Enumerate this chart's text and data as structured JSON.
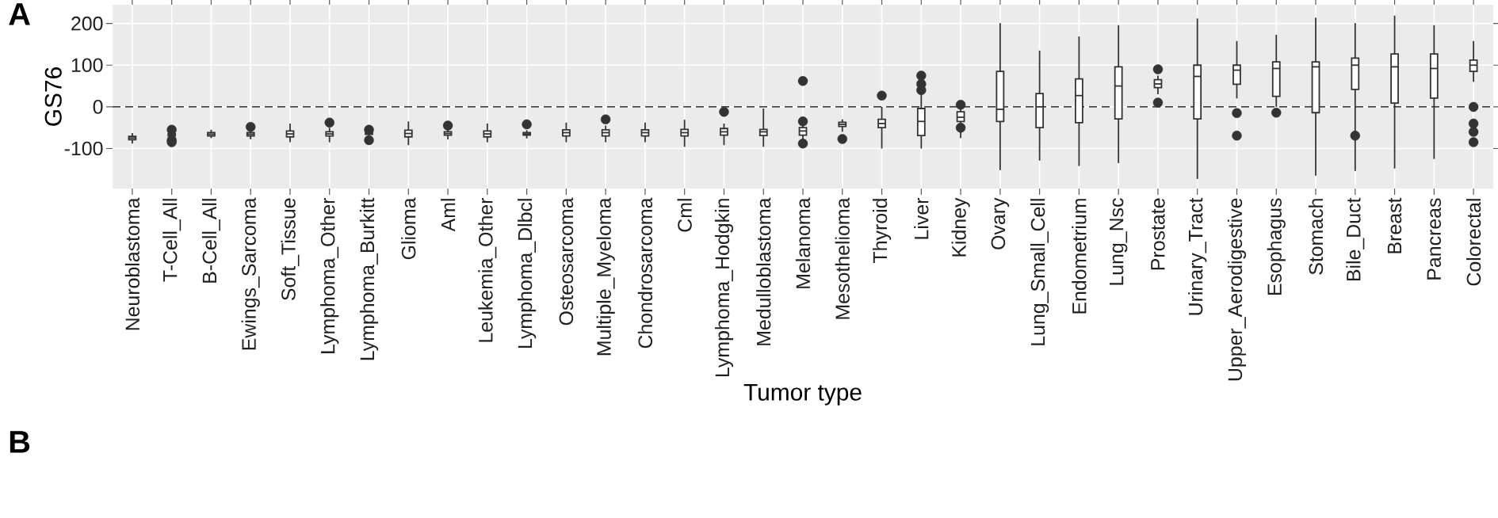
{
  "chart_data": {
    "type": "box",
    "ylabel": "GS76",
    "xlabel": "Tumor type",
    "annotations": [
      "A",
      "B"
    ],
    "categories": [
      "Neuroblastoma",
      "T-Cell_All",
      "B-Cell_All",
      "Ewings_Sarcoma",
      "Soft_Tissue",
      "Lymphoma_Other",
      "Lymphoma_Burkitt",
      "Glioma",
      "Aml",
      "Leukemia_Other",
      "Lymphoma_Dlbcl",
      "Osteosarcoma",
      "Multiple_Myeloma",
      "Chondrosarcoma",
      "Cml",
      "Lymphoma_Hodgkin",
      "Medulloblastoma",
      "Melanoma",
      "Mesothelioma",
      "Thyroid",
      "Liver",
      "Kidney",
      "Ovary",
      "Lung_Small_Cell",
      "Endometrium",
      "Lung_Nsc",
      "Prostate",
      "Urinary_Tract",
      "Upper_Aerodigestive",
      "Esophagus",
      "Stomach",
      "Bile_Duct",
      "Breast",
      "Pancreas",
      "Colorectal"
    ],
    "boxes": [
      {
        "low": -88,
        "q1": -79,
        "median": -75,
        "q3": -71,
        "high": -63
      },
      {
        "low": -75,
        "q1": -70,
        "median": -67,
        "q3": -64,
        "high": -60,
        "outliers": [
          -55,
          -80,
          -85
        ]
      },
      {
        "low": -75,
        "q1": -70,
        "median": -66,
        "q3": -62,
        "high": -55
      },
      {
        "low": -78,
        "q1": -70,
        "median": -66,
        "q3": -62,
        "high": -58,
        "outliers": [
          -48
        ]
      },
      {
        "low": -85,
        "q1": -72,
        "median": -65,
        "q3": -58,
        "high": -40
      },
      {
        "low": -85,
        "q1": -70,
        "median": -65,
        "q3": -60,
        "high": -50,
        "outliers": [
          -38
        ]
      },
      {
        "low": -70,
        "q1": -66,
        "median": -64,
        "q3": -62,
        "high": -58,
        "outliers": [
          -55,
          -80
        ]
      },
      {
        "low": -92,
        "q1": -72,
        "median": -64,
        "q3": -56,
        "high": -35
      },
      {
        "low": -78,
        "q1": -68,
        "median": -64,
        "q3": -60,
        "high": -55,
        "outliers": [
          -45
        ]
      },
      {
        "low": -85,
        "q1": -72,
        "median": -65,
        "q3": -58,
        "high": -40
      },
      {
        "low": -76,
        "q1": -68,
        "median": -65,
        "q3": -62,
        "high": -56,
        "outliers": [
          -42
        ]
      },
      {
        "low": -85,
        "q1": -70,
        "median": -62,
        "q3": -55,
        "high": -38
      },
      {
        "low": -85,
        "q1": -70,
        "median": -62,
        "q3": -55,
        "high": -45,
        "outliers": [
          -30
        ]
      },
      {
        "low": -85,
        "q1": -70,
        "median": -62,
        "q3": -55,
        "high": -38
      },
      {
        "low": -96,
        "q1": -70,
        "median": -62,
        "q3": -54,
        "high": -31
      },
      {
        "low": -92,
        "q1": -68,
        "median": -60,
        "q3": -52,
        "high": -40,
        "outliers": [
          -12
        ]
      },
      {
        "low": -96,
        "q1": -69,
        "median": -60,
        "q3": -54,
        "high": -4
      },
      {
        "low": -80,
        "q1": -68,
        "median": -58,
        "q3": -50,
        "high": -40,
        "outliers": [
          62,
          -35,
          -88
        ]
      },
      {
        "low": -60,
        "q1": -47,
        "median": -42,
        "q3": -37,
        "high": -30,
        "outliers": [
          -77
        ]
      },
      {
        "low": -100,
        "q1": -50,
        "median": -40,
        "q3": -30,
        "high": 0,
        "outliers": [
          27
        ]
      },
      {
        "low": -100,
        "q1": -69,
        "median": -35,
        "q3": -4,
        "high": 30,
        "outliers": [
          40,
          55,
          75
        ]
      },
      {
        "low": -75,
        "q1": -35,
        "median": -25,
        "q3": -12,
        "high": 0,
        "outliers": [
          5,
          -50
        ]
      },
      {
        "low": -152,
        "q1": -35,
        "median": -6,
        "q3": 85,
        "high": 201
      },
      {
        "low": -129,
        "q1": -50,
        "median": 0,
        "q3": 32,
        "high": 135
      },
      {
        "low": -142,
        "q1": -38,
        "median": 27,
        "q3": 67,
        "high": 169
      },
      {
        "low": -135,
        "q1": -29,
        "median": 50,
        "q3": 96,
        "high": 196
      },
      {
        "low": 30,
        "q1": 46,
        "median": 55,
        "q3": 65,
        "high": 75,
        "outliers": [
          90,
          10
        ]
      },
      {
        "low": -173,
        "q1": -29,
        "median": 73,
        "q3": 100,
        "high": 212
      },
      {
        "low": 20,
        "q1": 54,
        "median": 88,
        "q3": 100,
        "high": 158,
        "outliers": [
          -15,
          -69
        ]
      },
      {
        "low": 0,
        "q1": 25,
        "median": 92,
        "q3": 108,
        "high": 173,
        "outliers": [
          -14
        ]
      },
      {
        "low": -165,
        "q1": -14,
        "median": 96,
        "q3": 108,
        "high": 214
      },
      {
        "low": -154,
        "q1": 42,
        "median": 100,
        "q3": 117,
        "high": 201,
        "outliers": [
          -69
        ]
      },
      {
        "low": -148,
        "q1": 9,
        "median": 96,
        "q3": 127,
        "high": 219
      },
      {
        "low": -125,
        "q1": 21,
        "median": 92,
        "q3": 127,
        "high": 196
      },
      {
        "low": 60,
        "q1": 85,
        "median": 100,
        "q3": 112,
        "high": 158,
        "outliers": [
          0,
          -40,
          -60,
          -85
        ]
      }
    ],
    "color": "#333333",
    "ylim": [
      -196,
      245
    ],
    "yticks": [
      -100,
      0,
      100,
      200
    ],
    "grid": true,
    "ref_lines": [
      {
        "axis": "y",
        "value": 0,
        "line_style": "dashed"
      }
    ]
  }
}
